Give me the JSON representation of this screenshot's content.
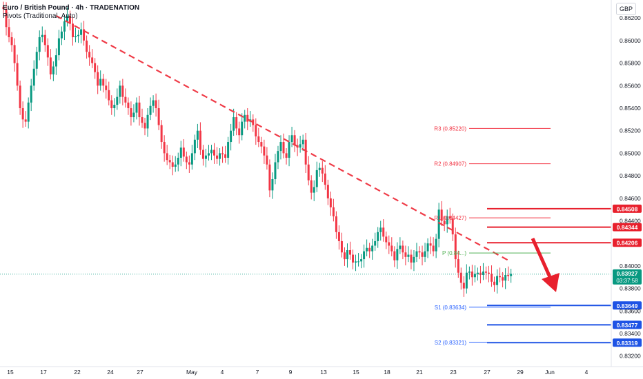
{
  "header": {
    "symbol_line": "Euro / British Pound · 4h · TRADENATION",
    "indicator_line": "Pivots (Traditional, Auto)",
    "currency": "GBP"
  },
  "colors": {
    "up": "#089981",
    "down": "#f23645",
    "trendline": "#ef3b47",
    "pivot_red": "#f23645",
    "pivot_green": "#4caf50",
    "pivot_blue": "#2962ff",
    "support_blue": "#1e53e5",
    "resistance_red": "#e8202d",
    "arrow": "#e8202d",
    "price_tag": "#089981"
  },
  "chart_data": {
    "type": "candlestick",
    "timeframe": "4h",
    "y_axis": {
      "range": [
        0.8318,
        0.8636
      ],
      "tick_labels": [
        "0.86200",
        "0.86000",
        "0.85800",
        "0.85600",
        "0.85400",
        "0.85200",
        "0.85000",
        "0.84800",
        "0.84600",
        "0.84400",
        "0.84000",
        "0.83800",
        "0.83600",
        "0.83400",
        "0.83200"
      ]
    },
    "x_axis": {
      "tick_labels": [
        "15",
        "17",
        "22",
        "24",
        "27",
        "May",
        "4",
        "7",
        "9",
        "13",
        "15",
        "18",
        "21",
        "23",
        "27",
        "29",
        "Jun",
        "4"
      ]
    },
    "candles_close": [
      0.8628,
      0.8612,
      0.8603,
      0.8596,
      0.858,
      0.856,
      0.854,
      0.853,
      0.8528,
      0.8545,
      0.856,
      0.8575,
      0.859,
      0.8603,
      0.8605,
      0.8596,
      0.8585,
      0.857,
      0.8577,
      0.8587,
      0.8602,
      0.8608,
      0.8617,
      0.8622,
      0.8615,
      0.8603,
      0.8604,
      0.8605,
      0.861,
      0.86,
      0.859,
      0.8585,
      0.858,
      0.8572,
      0.856,
      0.8566,
      0.856,
      0.8556,
      0.8547,
      0.854,
      0.8543,
      0.855,
      0.856,
      0.855,
      0.8545,
      0.854,
      0.8532,
      0.8536,
      0.8545,
      0.8532,
      0.8527,
      0.8522,
      0.8534,
      0.8542,
      0.8547,
      0.854,
      0.8525,
      0.851,
      0.85,
      0.8494,
      0.8492,
      0.8488,
      0.849,
      0.8496,
      0.8505,
      0.8497,
      0.8492,
      0.849,
      0.85,
      0.8512,
      0.852,
      0.8503,
      0.8495,
      0.8498,
      0.85,
      0.8503,
      0.8498,
      0.8495,
      0.85,
      0.8499,
      0.8496,
      0.851,
      0.852,
      0.8532,
      0.8522,
      0.8516,
      0.8528,
      0.8534,
      0.8528,
      0.853,
      0.8525,
      0.8515,
      0.851,
      0.8506,
      0.8498,
      0.849,
      0.8467,
      0.8477,
      0.8492,
      0.8502,
      0.851,
      0.85,
      0.8496,
      0.851,
      0.8516,
      0.8507,
      0.8505,
      0.8508,
      0.8512,
      0.849,
      0.8476,
      0.8465,
      0.847,
      0.8485,
      0.8487,
      0.8482,
      0.8472,
      0.846,
      0.8452,
      0.8444,
      0.843,
      0.8422,
      0.8412,
      0.8406,
      0.8414,
      0.841,
      0.8403,
      0.8404,
      0.8404,
      0.8406,
      0.8413,
      0.8416,
      0.8413,
      0.8418,
      0.8422,
      0.843,
      0.8434,
      0.8426,
      0.8421,
      0.8418,
      0.8413,
      0.8405,
      0.8415,
      0.8418,
      0.8412,
      0.8408,
      0.841,
      0.8403,
      0.8408,
      0.8413,
      0.8412,
      0.8408,
      0.8413,
      0.842,
      0.8418,
      0.8413,
      0.8424,
      0.845,
      0.844,
      0.8437,
      0.8444,
      0.8442,
      0.8428,
      0.8406,
      0.8394,
      0.8385,
      0.838,
      0.8394,
      0.8395,
      0.839,
      0.8393,
      0.8394,
      0.8392,
      0.8395,
      0.8394,
      0.8393,
      0.8386,
      0.8383,
      0.8391,
      0.839,
      0.8387,
      0.8392,
      0.8391,
      0.8393
    ],
    "last_price": "0.83927",
    "countdown": "03:37:58",
    "pivots": [
      {
        "label": "R3 (0.85220)",
        "value": 0.8522,
        "color": "red"
      },
      {
        "label": "R2 (0.84907)",
        "value": 0.84907,
        "color": "red"
      },
      {
        "label": "R1 (0.84427)",
        "value": 0.84427,
        "color": "red"
      },
      {
        "label": "P (0.84...)",
        "value": 0.84115,
        "color": "green"
      },
      {
        "label": "S1 (0.83634)",
        "value": 0.83634,
        "color": "blue"
      },
      {
        "label": "S2 (0.83321)",
        "value": 0.83321,
        "color": "blue"
      }
    ],
    "resistance_levels": [
      "0.84508",
      "0.84344",
      "0.84206"
    ],
    "support_levels": [
      "0.83649",
      "0.83477",
      "0.83319"
    ],
    "trendline": {
      "from": [
        19,
        0.8622
      ],
      "to": [
        182,
        0.8405
      ]
    }
  }
}
